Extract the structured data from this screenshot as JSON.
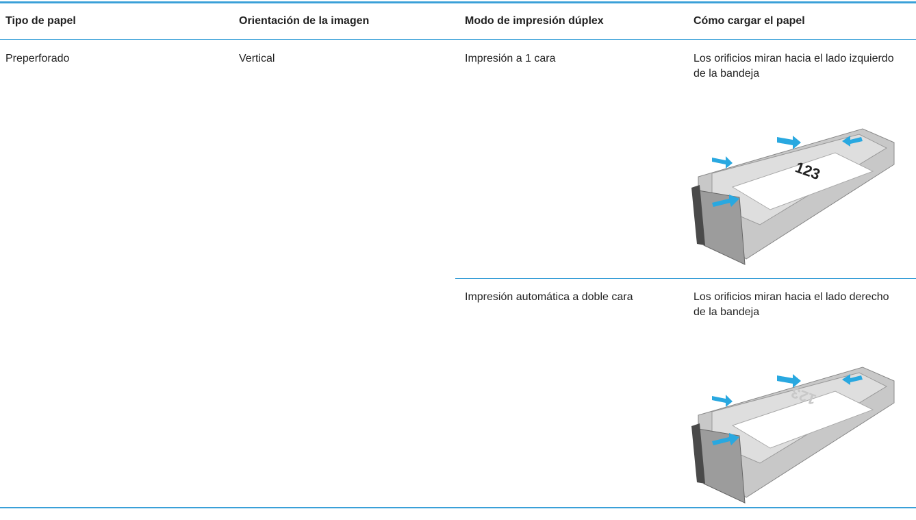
{
  "table": {
    "header": [
      "Tipo de papel",
      "Orientación de la imagen",
      "Modo de impresión dúplex",
      "Cómo cargar el papel"
    ],
    "rows": [
      {
        "paper_type": "Preperforado",
        "orientation": "Vertical",
        "modes": [
          {
            "duplex_mode": "Impresión a 1 cara",
            "loading": "Los orificios miran hacia el lado izquierdo de la bandeja",
            "illustration_label": "123"
          },
          {
            "duplex_mode": "Impresión automática a doble cara",
            "loading": "Los orificios miran hacia el lado derecho de la bandeja",
            "illustration_label": "123"
          }
        ]
      }
    ]
  }
}
